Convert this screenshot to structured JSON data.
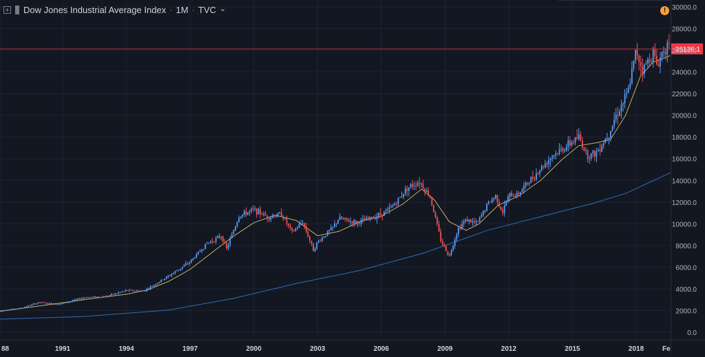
{
  "header": {
    "symbol": "Dow Jones Industrial Average Index",
    "interval": "1M",
    "exchange": "TVC",
    "dot": "·",
    "chevron": "⌄",
    "alert_glyph": "!"
  },
  "colors": {
    "background": "#131722",
    "grid": "#1f2330",
    "up": "#5b9cf6",
    "down": "#ef5350",
    "ma_fast": "#c8b26a",
    "ma_slow": "#2e6fb7",
    "price_line": "#f23645",
    "alert": "#f7a134"
  },
  "price_label": "26126.1",
  "chart_data": {
    "type": "candlestick",
    "title": "Dow Jones Industrial Average Index",
    "interval": "1M",
    "source": "TVC",
    "ylim": [
      -600,
      30500
    ],
    "y_ticks": [
      "30000.0",
      "28000.0",
      "26000.0",
      "24000.0",
      "22000.0",
      "20000.0",
      "18000.0",
      "16000.0",
      "14000.0",
      "12000.0",
      "10000.0",
      "8000.0",
      "6000.0",
      "4000.0",
      "2000.0",
      "0.0"
    ],
    "x_ticks": [
      "88",
      "1991",
      "1994",
      "1997",
      "2000",
      "2003",
      "2006",
      "2009",
      "2012",
      "2015",
      "2018",
      "Fe"
    ],
    "xlim": [
      1988.05,
      2019.62
    ],
    "last_price": 26126.1,
    "anchors": [
      [
        1988.0,
        2000
      ],
      [
        1989.0,
        2200
      ],
      [
        1989.9,
        2750
      ],
      [
        1990.6,
        2600
      ],
      [
        1991.0,
        2650
      ],
      [
        1992.0,
        3200
      ],
      [
        1993.0,
        3300
      ],
      [
        1994.0,
        3850
      ],
      [
        1994.8,
        3800
      ],
      [
        1995.5,
        4600
      ],
      [
        1996.0,
        5200
      ],
      [
        1997.0,
        6500
      ],
      [
        1997.8,
        8200
      ],
      [
        1998.5,
        8900
      ],
      [
        1998.7,
        7600
      ],
      [
        1999.3,
        10700
      ],
      [
        2000.0,
        11300
      ],
      [
        2000.7,
        10600
      ],
      [
        2001.3,
        10900
      ],
      [
        2001.8,
        9200
      ],
      [
        2002.3,
        10200
      ],
      [
        2002.8,
        7600
      ],
      [
        2003.0,
        8300
      ],
      [
        2003.7,
        9600
      ],
      [
        2004.0,
        10500
      ],
      [
        2004.8,
        10100
      ],
      [
        2005.5,
        10500
      ],
      [
        2006.3,
        11200
      ],
      [
        2006.8,
        12200
      ],
      [
        2007.2,
        13300
      ],
      [
        2007.8,
        13900
      ],
      [
        2008.3,
        12500
      ],
      [
        2008.8,
        8500
      ],
      [
        2009.2,
        7000
      ],
      [
        2009.6,
        9500
      ],
      [
        2010.0,
        10400
      ],
      [
        2010.5,
        10000
      ],
      [
        2011.0,
        11800
      ],
      [
        2011.4,
        12600
      ],
      [
        2011.7,
        11000
      ],
      [
        2012.0,
        12600
      ],
      [
        2012.4,
        12700
      ],
      [
        2013.0,
        14000
      ],
      [
        2013.6,
        15300
      ],
      [
        2014.0,
        16200
      ],
      [
        2014.6,
        17000
      ],
      [
        2015.3,
        18000
      ],
      [
        2015.7,
        16300
      ],
      [
        2016.1,
        16500
      ],
      [
        2016.7,
        18300
      ],
      [
        2017.0,
        19800
      ],
      [
        2017.6,
        22000
      ],
      [
        2018.0,
        26000
      ],
      [
        2018.3,
        24200
      ],
      [
        2018.8,
        25800
      ],
      [
        2019.0,
        24500
      ],
      [
        2019.3,
        26300
      ],
      [
        2019.55,
        26126
      ]
    ],
    "ma_fast_points": [
      [
        1988.0,
        1900
      ],
      [
        1990.0,
        2450
      ],
      [
        1992.0,
        3000
      ],
      [
        1994.0,
        3500
      ],
      [
        1995.0,
        3900
      ],
      [
        1996.0,
        4700
      ],
      [
        1997.0,
        5800
      ],
      [
        1998.0,
        7300
      ],
      [
        1999.0,
        8800
      ],
      [
        2000.0,
        10100
      ],
      [
        2001.0,
        10800
      ],
      [
        2002.0,
        10300
      ],
      [
        2003.0,
        8900
      ],
      [
        2004.0,
        9300
      ],
      [
        2005.0,
        10200
      ],
      [
        2006.0,
        10700
      ],
      [
        2007.0,
        11800
      ],
      [
        2007.9,
        13200
      ],
      [
        2008.5,
        12200
      ],
      [
        2009.2,
        10200
      ],
      [
        2010.0,
        9400
      ],
      [
        2010.6,
        10000
      ],
      [
        2011.5,
        11700
      ],
      [
        2012.5,
        12600
      ],
      [
        2013.5,
        14000
      ],
      [
        2014.5,
        15900
      ],
      [
        2015.3,
        17200
      ],
      [
        2016.2,
        17500
      ],
      [
        2016.8,
        17800
      ],
      [
        2017.5,
        20000
      ],
      [
        2018.2,
        23600
      ],
      [
        2018.8,
        24900
      ],
      [
        2019.6,
        25500
      ]
    ],
    "ma_slow_points": [
      [
        1988.0,
        1200
      ],
      [
        1992.0,
        1450
      ],
      [
        1996.0,
        2050
      ],
      [
        1999.0,
        3100
      ],
      [
        2002.0,
        4500
      ],
      [
        2005.0,
        5700
      ],
      [
        2008.0,
        7300
      ],
      [
        2011.0,
        9400
      ],
      [
        2014.0,
        10900
      ],
      [
        2016.0,
        11900
      ],
      [
        2017.5,
        12800
      ],
      [
        2018.5,
        13700
      ],
      [
        2019.6,
        14700
      ]
    ]
  }
}
